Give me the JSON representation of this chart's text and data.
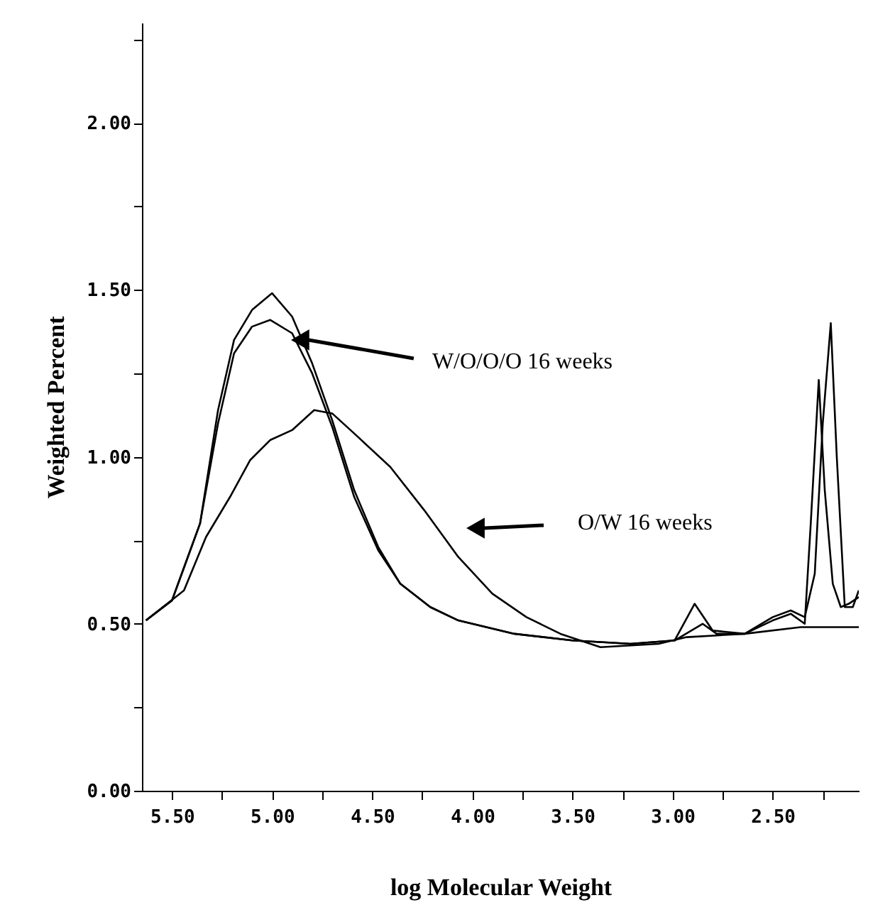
{
  "chart_data": {
    "type": "line",
    "xlabel": "log Molecular Weight",
    "ylabel": "Weighted Percent",
    "xlim": [
      5.65,
      2.07
    ],
    "ylim": [
      0,
      2.3
    ],
    "xticks": [
      {
        "value": 5.5,
        "label": "5.50"
      },
      {
        "value": 5.25,
        "label": null
      },
      {
        "value": 5.0,
        "label": "5.00"
      },
      {
        "value": 4.75,
        "label": null
      },
      {
        "value": 4.5,
        "label": "4.50"
      },
      {
        "value": 4.25,
        "label": null
      },
      {
        "value": 4.0,
        "label": "4.00"
      },
      {
        "value": 3.75,
        "label": null
      },
      {
        "value": 3.5,
        "label": "3.50"
      },
      {
        "value": 3.25,
        "label": null
      },
      {
        "value": 3.0,
        "label": "3.00"
      },
      {
        "value": 2.75,
        "label": null
      },
      {
        "value": 2.5,
        "label": "2.50"
      },
      {
        "value": 2.25,
        "label": null
      }
    ],
    "yticks": [
      {
        "value": 0,
        "label": "0.00"
      },
      {
        "value": 0.25,
        "label": null
      },
      {
        "value": 0.5,
        "label": "0.50"
      },
      {
        "value": 0.75,
        "label": null
      },
      {
        "value": 1.0,
        "label": "1.00"
      },
      {
        "value": 1.25,
        "label": null
      },
      {
        "value": 1.5,
        "label": "1.50"
      },
      {
        "value": 1.75,
        "label": null
      },
      {
        "value": 2.0,
        "label": "2.00"
      },
      {
        "value": 2.25,
        "label": null
      }
    ],
    "grid": false,
    "marker": "none",
    "line_style": "solid",
    "series": [
      {
        "color": "#000000",
        "x": [
          5.63,
          5.5,
          5.36,
          5.27,
          5.19,
          5.1,
          5.0,
          4.9,
          4.8,
          4.7,
          4.59,
          4.47,
          4.36,
          4.21,
          4.07,
          3.79,
          3.5,
          3.21,
          2.99,
          2.89,
          2.8,
          2.64,
          2.5,
          2.41,
          2.34,
          2.29,
          2.25,
          2.21,
          2.18,
          2.14,
          2.1,
          2.07
        ],
        "values": [
          0.51,
          0.57,
          0.8,
          1.14,
          1.35,
          1.44,
          1.49,
          1.42,
          1.28,
          1.11,
          0.9,
          0.73,
          0.62,
          0.55,
          0.51,
          0.47,
          0.45,
          0.44,
          0.45,
          0.56,
          0.48,
          0.47,
          0.52,
          0.54,
          0.52,
          0.65,
          1.1,
          1.4,
          1.0,
          0.55,
          0.55,
          0.6
        ]
      },
      {
        "color": "#000000",
        "x": [
          5.63,
          5.5,
          5.36,
          5.27,
          5.19,
          5.1,
          5.01,
          4.9,
          4.8,
          4.7,
          4.59,
          4.47,
          4.36,
          4.21,
          4.07,
          3.79,
          3.5,
          3.21,
          2.99,
          2.85,
          2.78,
          2.64,
          2.5,
          2.41,
          2.34,
          2.31,
          2.27,
          2.24,
          2.2,
          2.16,
          2.12,
          2.07
        ],
        "values": [
          0.51,
          0.57,
          0.8,
          1.1,
          1.31,
          1.39,
          1.41,
          1.37,
          1.25,
          1.09,
          0.88,
          0.72,
          0.62,
          0.55,
          0.51,
          0.47,
          0.45,
          0.44,
          0.45,
          0.5,
          0.47,
          0.47,
          0.51,
          0.53,
          0.5,
          0.8,
          1.23,
          0.9,
          0.62,
          0.55,
          0.56,
          0.58
        ]
      },
      {
        "color": "#000000",
        "x": [
          5.63,
          5.44,
          5.33,
          5.21,
          5.11,
          5.01,
          4.9,
          4.79,
          4.7,
          4.59,
          4.41,
          4.24,
          4.07,
          3.9,
          3.73,
          3.56,
          3.36,
          3.07,
          2.93,
          2.64,
          2.36,
          2.07
        ],
        "values": [
          0.51,
          0.6,
          0.76,
          0.88,
          0.99,
          1.05,
          1.08,
          1.14,
          1.13,
          1.07,
          0.97,
          0.84,
          0.7,
          0.59,
          0.52,
          0.47,
          0.43,
          0.44,
          0.46,
          0.47,
          0.49,
          0.49
        ]
      }
    ],
    "annotations": [
      {
        "text": "W/O/O/O 16 weeks",
        "x": 4.86,
        "y": 1.35
      },
      "O/W 16 weeks"
    ]
  }
}
